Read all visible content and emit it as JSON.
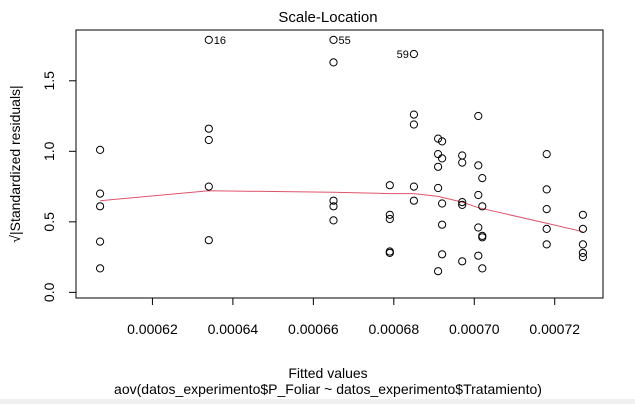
{
  "chart_data": {
    "type": "scatter",
    "title": "Scale-Location",
    "xlabel": "Fitted values",
    "subtitle": "aov(datos_experimento$P_Foliar ~ datos_experimento$Tratamiento)",
    "ylabel": "√|Standardized residuals|",
    "xlim": [
      0.000601,
      0.000732
    ],
    "ylim": [
      -0.04,
      1.86
    ],
    "x_ticks": [
      0.00062,
      0.00064,
      0.00066,
      0.00068,
      0.0007,
      0.00072
    ],
    "x_tick_labels": [
      "0.00062",
      "0.00064",
      "0.00066",
      "0.00068",
      "0.00070",
      "0.00072"
    ],
    "y_ticks": [
      0.0,
      0.5,
      1.0,
      1.5
    ],
    "y_tick_labels": [
      "0.0",
      "0.5",
      "1.0",
      "1.5"
    ],
    "grid": false,
    "points": [
      {
        "x": 0.000607,
        "y": 1.01
      },
      {
        "x": 0.000607,
        "y": 0.7
      },
      {
        "x": 0.000607,
        "y": 0.61
      },
      {
        "x": 0.000607,
        "y": 0.36
      },
      {
        "x": 0.000607,
        "y": 0.17
      },
      {
        "x": 0.000634,
        "y": 1.79
      },
      {
        "x": 0.000634,
        "y": 1.16
      },
      {
        "x": 0.000634,
        "y": 1.08
      },
      {
        "x": 0.000634,
        "y": 0.75
      },
      {
        "x": 0.000634,
        "y": 0.37
      },
      {
        "x": 0.000665,
        "y": 1.79
      },
      {
        "x": 0.000665,
        "y": 1.63
      },
      {
        "x": 0.000665,
        "y": 0.65
      },
      {
        "x": 0.000665,
        "y": 0.61
      },
      {
        "x": 0.000665,
        "y": 0.51
      },
      {
        "x": 0.000679,
        "y": 0.76
      },
      {
        "x": 0.000679,
        "y": 0.55
      },
      {
        "x": 0.000679,
        "y": 0.52
      },
      {
        "x": 0.000679,
        "y": 0.29
      },
      {
        "x": 0.000679,
        "y": 0.28
      },
      {
        "x": 0.000685,
        "y": 1.69
      },
      {
        "x": 0.000685,
        "y": 1.26
      },
      {
        "x": 0.000685,
        "y": 1.19
      },
      {
        "x": 0.000685,
        "y": 0.75
      },
      {
        "x": 0.000685,
        "y": 0.65
      },
      {
        "x": 0.000691,
        "y": 1.09
      },
      {
        "x": 0.000692,
        "y": 1.07
      },
      {
        "x": 0.000691,
        "y": 0.98
      },
      {
        "x": 0.000692,
        "y": 0.95
      },
      {
        "x": 0.000691,
        "y": 0.89
      },
      {
        "x": 0.000691,
        "y": 0.74
      },
      {
        "x": 0.000692,
        "y": 0.63
      },
      {
        "x": 0.000692,
        "y": 0.48
      },
      {
        "x": 0.000692,
        "y": 0.27
      },
      {
        "x": 0.000691,
        "y": 0.15
      },
      {
        "x": 0.000697,
        "y": 0.97
      },
      {
        "x": 0.000697,
        "y": 0.92
      },
      {
        "x": 0.000697,
        "y": 0.64
      },
      {
        "x": 0.000697,
        "y": 0.62
      },
      {
        "x": 0.000697,
        "y": 0.22
      },
      {
        "x": 0.000701,
        "y": 1.25
      },
      {
        "x": 0.000701,
        "y": 0.9
      },
      {
        "x": 0.000702,
        "y": 0.81
      },
      {
        "x": 0.000701,
        "y": 0.69
      },
      {
        "x": 0.000702,
        "y": 0.61
      },
      {
        "x": 0.000701,
        "y": 0.46
      },
      {
        "x": 0.000702,
        "y": 0.4
      },
      {
        "x": 0.000702,
        "y": 0.39
      },
      {
        "x": 0.000701,
        "y": 0.26
      },
      {
        "x": 0.000702,
        "y": 0.17
      },
      {
        "x": 0.000718,
        "y": 0.98
      },
      {
        "x": 0.000718,
        "y": 0.73
      },
      {
        "x": 0.000718,
        "y": 0.59
      },
      {
        "x": 0.000718,
        "y": 0.45
      },
      {
        "x": 0.000718,
        "y": 0.34
      },
      {
        "x": 0.000727,
        "y": 0.55
      },
      {
        "x": 0.000727,
        "y": 0.45
      },
      {
        "x": 0.000727,
        "y": 0.34
      },
      {
        "x": 0.000727,
        "y": 0.28
      },
      {
        "x": 0.000727,
        "y": 0.25
      }
    ],
    "point_labels": [
      {
        "x": 0.000634,
        "y": 1.79,
        "text": "16",
        "side": "right"
      },
      {
        "x": 0.000665,
        "y": 1.79,
        "text": "55",
        "side": "right"
      },
      {
        "x": 0.000685,
        "y": 1.69,
        "text": "59",
        "side": "left"
      }
    ],
    "smoother": {
      "color": "#df536b",
      "x": [
        0.000607,
        0.000634,
        0.000665,
        0.000679,
        0.000685,
        0.000691,
        0.000697,
        0.000701,
        0.000718,
        0.000727
      ],
      "y": [
        0.65,
        0.72,
        0.71,
        0.7,
        0.7,
        0.68,
        0.64,
        0.6,
        0.49,
        0.43
      ]
    }
  }
}
